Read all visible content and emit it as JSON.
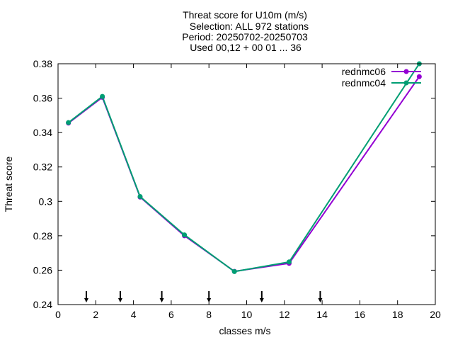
{
  "chart_data": {
    "type": "line",
    "title_lines": [
      "Threat score  for U10m (m/s)",
      "Selection: ALL    972 stations",
      "Period: 20250702-20250703",
      "Used 00,12 + 00 01 ... 36"
    ],
    "xlabel": "classes m/s",
    "ylabel": "Threat score",
    "xlim": [
      0,
      20
    ],
    "ylim": [
      0.24,
      0.38
    ],
    "x_ticks": [
      0,
      2,
      4,
      6,
      8,
      10,
      12,
      14,
      16,
      18,
      20
    ],
    "y_ticks": [
      0.24,
      0.26,
      0.28,
      0.3,
      0.32,
      0.34,
      0.36,
      0.38
    ],
    "x_tick_labels": [
      "0",
      "2",
      "4",
      "6",
      "8",
      "10",
      "12",
      "14",
      "16",
      "18",
      "20"
    ],
    "y_tick_labels": [
      "0.24",
      "0.26",
      "0.28",
      "0.3",
      "0.32",
      "0.34",
      "0.36",
      "0.38"
    ],
    "class_boundaries": [
      1.5,
      3.3,
      5.5,
      8.0,
      10.8,
      13.9
    ],
    "legend_position": "top-right",
    "grid": false,
    "series": [
      {
        "name": "rednmc06",
        "color": "#9400d3",
        "x": [
          0.55,
          2.35,
          4.35,
          6.7,
          9.35,
          12.25,
          19.15
        ],
        "y": [
          0.3455,
          0.3605,
          0.3025,
          0.28,
          0.2593,
          0.264,
          0.3725
        ]
      },
      {
        "name": "rednmc04",
        "color": "#009e73",
        "x": [
          0.55,
          2.35,
          4.35,
          6.7,
          9.35,
          12.25,
          19.15
        ],
        "y": [
          0.3458,
          0.361,
          0.3028,
          0.2805,
          0.2592,
          0.2648,
          0.38
        ]
      }
    ]
  }
}
